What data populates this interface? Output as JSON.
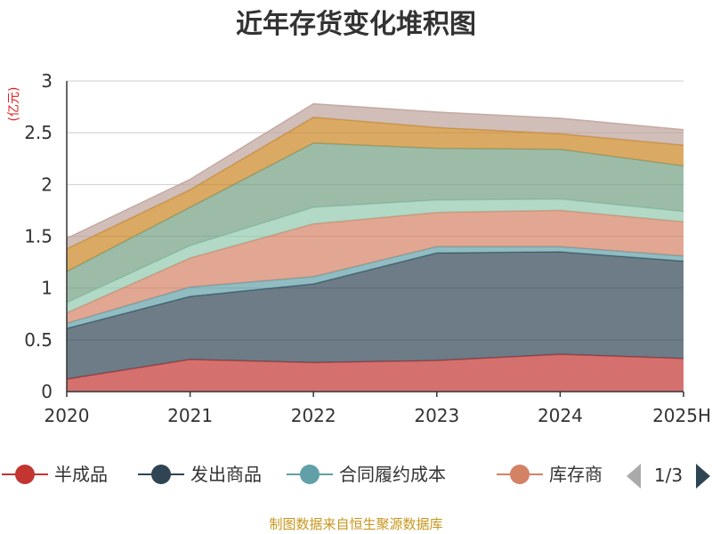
{
  "chart_data": {
    "type": "area",
    "stacked": true,
    "title": "近年存货变化堆积图",
    "unit_label": "(亿元)",
    "x": [
      "2020",
      "2021",
      "2022",
      "2023",
      "2024",
      "2025H"
    ],
    "ylim": [
      0,
      3
    ],
    "yticks": [
      "0",
      "0.5",
      "1",
      "1.5",
      "2",
      "2.5",
      "3"
    ],
    "grid": true,
    "series": [
      {
        "name": "半成品",
        "color": "#c23531",
        "values": [
          0.12,
          0.31,
          0.28,
          0.3,
          0.36,
          0.32
        ]
      },
      {
        "name": "发出商品",
        "color": "#2f4554",
        "values": [
          0.49,
          0.61,
          0.76,
          1.04,
          0.99,
          0.94
        ]
      },
      {
        "name": "合同履约成本",
        "color": "#61a0a8",
        "values": [
          0.05,
          0.09,
          0.07,
          0.06,
          0.05,
          0.05
        ]
      },
      {
        "name": "库存商品",
        "color": "#d48265",
        "values": [
          0.1,
          0.28,
          0.51,
          0.33,
          0.35,
          0.33
        ]
      },
      {
        "color": "#91c7ae",
        "values": [
          0.1,
          0.12,
          0.16,
          0.12,
          0.11,
          0.1
        ]
      },
      {
        "color": "#749f83",
        "values": [
          0.3,
          0.37,
          0.62,
          0.5,
          0.48,
          0.44
        ]
      },
      {
        "color": "#ca8622",
        "values": [
          0.22,
          0.17,
          0.25,
          0.2,
          0.15,
          0.2
        ]
      },
      {
        "color": "#bda29a",
        "values": [
          0.1,
          0.1,
          0.13,
          0.15,
          0.15,
          0.15
        ]
      }
    ],
    "legend": {
      "position": "bottom",
      "page": "1/3",
      "visible_items": [
        "半成品",
        "发出商品",
        "合同履约成本",
        "库存商"
      ]
    },
    "source_note": "制图数据来自恒生聚源数据库"
  }
}
